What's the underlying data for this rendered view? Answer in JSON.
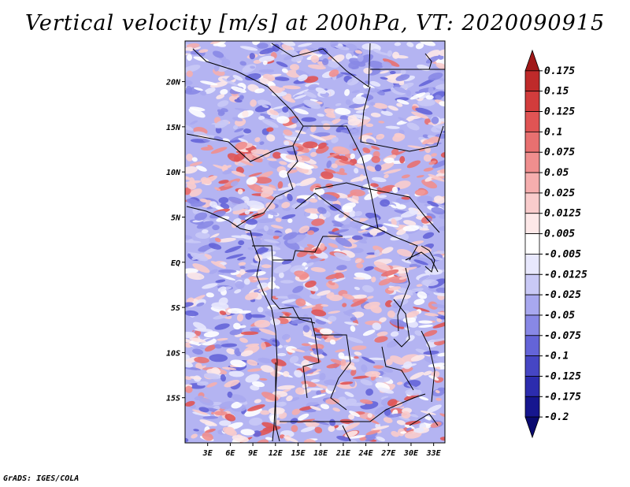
{
  "title": "Vertical velocity [m/s] at 200hPa, VT: 2020090915",
  "credit": "GrADS: IGES/COLA",
  "map": {
    "lon_range": [
      0,
      34.5
    ],
    "lat_range": [
      -20,
      24.5
    ],
    "lon_ticks": [
      {
        "value": 3,
        "label": "3E"
      },
      {
        "value": 6,
        "label": "6E"
      },
      {
        "value": 9,
        "label": "9E"
      },
      {
        "value": 12,
        "label": "12E"
      },
      {
        "value": 15,
        "label": "15E"
      },
      {
        "value": 18,
        "label": "18E"
      },
      {
        "value": 21,
        "label": "21E"
      },
      {
        "value": 24,
        "label": "24E"
      },
      {
        "value": 27,
        "label": "27E"
      },
      {
        "value": 30,
        "label": "30E"
      },
      {
        "value": 33,
        "label": "33E"
      }
    ],
    "lat_ticks": [
      {
        "value": 20,
        "label": "20N"
      },
      {
        "value": 15,
        "label": "15N"
      },
      {
        "value": 10,
        "label": "10N"
      },
      {
        "value": 5,
        "label": "5N"
      },
      {
        "value": 0,
        "label": "EQ"
      },
      {
        "value": -5,
        "label": "5S"
      },
      {
        "value": -10,
        "label": "10S"
      },
      {
        "value": -15,
        "label": "15S"
      }
    ],
    "variable": "vertical velocity",
    "level": "200hPa",
    "units": "m/s"
  },
  "colorbar": {
    "labels": [
      "0.175",
      "0.15",
      "0.125",
      "0.1",
      "0.075",
      "0.05",
      "0.025",
      "0.0125",
      "0.005",
      "-0.005",
      "-0.0125",
      "-0.025",
      "-0.05",
      "-0.075",
      "-0.1",
      "-0.125",
      "-0.175",
      "-0.2"
    ],
    "colors": [
      "#a01818",
      "#bf2a2a",
      "#d23c3c",
      "#e05454",
      "#e87070",
      "#ef8e8e",
      "#f5aeae",
      "#f9cccc",
      "#fde8e8",
      "#ffffff",
      "#e8e8fd",
      "#c9c9f6",
      "#a8a8ef",
      "#8888e6",
      "#6464d8",
      "#4646c4",
      "#2c2cae",
      "#16168f",
      "#0a0a70"
    ]
  }
}
